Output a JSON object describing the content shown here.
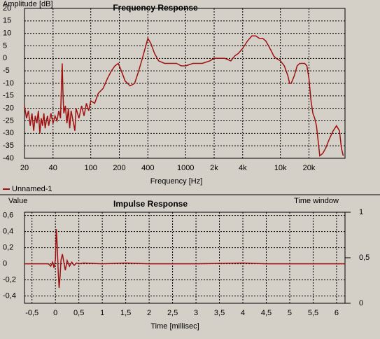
{
  "chart_data": [
    {
      "type": "line",
      "title": "Frequency Response",
      "ylabel": "Amplitude [dB]",
      "xlabel": "Frequency [Hz]",
      "xscale": "log",
      "xlim": [
        20,
        48000
      ],
      "ylim": [
        -40,
        20
      ],
      "grid": true,
      "legend": "bottom-left",
      "xticks": [
        20,
        40,
        100,
        200,
        400,
        1000,
        {
          "value": 2000,
          "label": "2k"
        },
        {
          "value": 4000,
          "label": "4k"
        },
        {
          "value": 10000,
          "label": "10k"
        },
        {
          "value": 20000,
          "label": "20k"
        }
      ],
      "yticks": [
        20,
        15,
        10,
        5,
        0,
        -5,
        -10,
        -15,
        -20,
        -25,
        -30,
        -35,
        -40
      ],
      "series": [
        {
          "name": "Unnamed-1",
          "color": "#a01010",
          "x": [
            20,
            21,
            22,
            23,
            24,
            25,
            26,
            27,
            28,
            29,
            30,
            31,
            32,
            33,
            34,
            35,
            36,
            38,
            40,
            42,
            44,
            46,
            48,
            49,
            50,
            51,
            52,
            54,
            56,
            58,
            60,
            62,
            65,
            68,
            70,
            75,
            80,
            85,
            90,
            95,
            100,
            110,
            120,
            135,
            150,
            165,
            180,
            195,
            210,
            230,
            260,
            290,
            320,
            350,
            400,
            430,
            470,
            520,
            600,
            700,
            800,
            900,
            1000,
            1200,
            1500,
            1800,
            2000,
            2300,
            2600,
            3000,
            3300,
            3600,
            4000,
            4500,
            5000,
            5500,
            6000,
            6500,
            7000,
            7500,
            8000,
            8500,
            9000,
            10000,
            11000,
            12000,
            12500,
            13000,
            14000,
            15000,
            16000,
            17000,
            18000,
            19000,
            20000,
            21000,
            22000,
            23000,
            24000,
            25000,
            26000,
            28000,
            30000,
            33000,
            36000,
            39000,
            42000,
            44000,
            46000
          ],
          "values": [
            -19,
            -24,
            -21,
            -27,
            -22,
            -29,
            -23,
            -26,
            -21,
            -30,
            -24,
            -27,
            -22,
            -28,
            -25,
            -23,
            -27,
            -22,
            -26,
            -23,
            -25,
            -21,
            -24,
            -12,
            -2,
            -15,
            -22,
            -19,
            -26,
            -20,
            -28,
            -21,
            -25,
            -29,
            -20,
            -24,
            -19,
            -23,
            -18,
            -21,
            -17,
            -18,
            -14,
            -12,
            -8,
            -5,
            -3,
            -2,
            -5,
            -9,
            -11,
            -10,
            -5,
            0,
            8,
            6,
            2,
            -1,
            -2,
            -2,
            -2,
            -3,
            -3,
            -2,
            -2,
            -1,
            0,
            0,
            0,
            -1,
            1,
            2,
            4,
            7,
            9,
            9,
            8,
            8,
            7,
            5,
            3,
            1,
            0,
            -1,
            -3,
            -7,
            -10,
            -10,
            -7,
            -3,
            -2,
            -2,
            -2,
            -3,
            -8,
            -17,
            -22,
            -24,
            -27,
            -33,
            -39,
            -38,
            -36,
            -32,
            -29,
            -27,
            -29,
            -36,
            -39
          ]
        }
      ]
    },
    {
      "type": "line",
      "title": "Impulse Response",
      "ylabel": "Value",
      "y2label": "Time window",
      "xlabel": "Time [millisec]",
      "xlim": [
        -0.66,
        6.18
      ],
      "ylim": [
        -0.49,
        0.64
      ],
      "y2lim": [
        0,
        1
      ],
      "grid": true,
      "xticks": [
        {
          "value": -0.5,
          "label": "-0,5"
        },
        0,
        {
          "value": 0.5,
          "label": "0,5"
        },
        1,
        {
          "value": 1.5,
          "label": "1,5"
        },
        2,
        {
          "value": 2.5,
          "label": "2,5"
        },
        3,
        {
          "value": 3.5,
          "label": "3,5"
        },
        4,
        {
          "value": 4.5,
          "label": "4,5"
        },
        5,
        {
          "value": 5.5,
          "label": "5,5"
        },
        6
      ],
      "yticks": [
        {
          "value": 0.6,
          "label": "0,6"
        },
        {
          "value": 0.4,
          "label": "0,4"
        },
        {
          "value": 0.2,
          "label": "0,2"
        },
        0,
        {
          "value": -0.2,
          "label": "-0,2"
        },
        {
          "value": -0.4,
          "label": "-0,4"
        }
      ],
      "y2ticks": [
        1,
        {
          "value": 0.5,
          "label": "0,5"
        },
        0
      ],
      "series": [
        {
          "color": "#a01010",
          "x": [
            -0.66,
            -0.15,
            -0.1,
            -0.06,
            -0.03,
            0,
            0.02,
            0.04,
            0.06,
            0.08,
            0.1,
            0.12,
            0.15,
            0.18,
            0.21,
            0.25,
            0.3,
            0.35,
            0.4,
            0.45,
            0.5,
            0.6,
            1.0,
            1.5,
            2.0,
            3.0,
            4.0,
            4.5,
            5.0,
            6.18
          ],
          "values": [
            0,
            0,
            -0.03,
            0.02,
            -0.05,
            0.05,
            0.43,
            0.2,
            -0.1,
            -0.3,
            -0.15,
            0.05,
            0.12,
            0.02,
            -0.08,
            0.04,
            -0.03,
            0.02,
            -0.02,
            0.01,
            0,
            0.01,
            0,
            0.01,
            0,
            0,
            0.01,
            0,
            0,
            0
          ]
        }
      ]
    }
  ]
}
